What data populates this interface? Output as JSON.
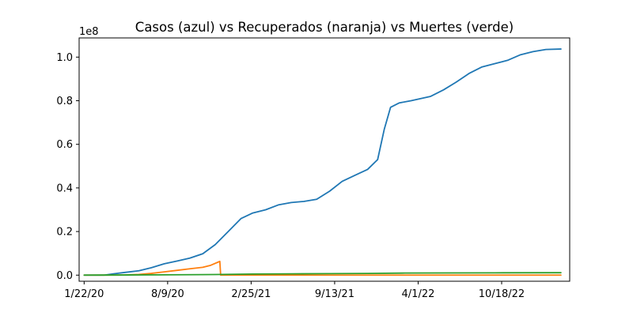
{
  "chart_data": {
    "type": "line",
    "title": "Casos (azul) vs Recuperados (naranja) vs Muertes (verde)",
    "xlabel": "",
    "ylabel": "",
    "y_offset_label": "1e8",
    "y_scale_factor": 100000000,
    "xlim": [
      "2020-01-10",
      "2023-03-30"
    ],
    "ylim": [
      -0.028,
      1.088
    ],
    "x_tick_values": [
      "2020-01-22",
      "2020-08-09",
      "2021-02-25",
      "2021-09-13",
      "2022-04-01",
      "2022-10-18"
    ],
    "x_tick_labels": [
      "1/22/20",
      "8/9/20",
      "2/25/21",
      "9/13/21",
      "4/1/22",
      "10/18/22"
    ],
    "y_tick_values": [
      0.0,
      0.2,
      0.4,
      0.6,
      0.8,
      1.0
    ],
    "y_tick_labels": [
      "0.0",
      "0.2",
      "0.4",
      "0.6",
      "0.8",
      "1.0"
    ],
    "grid": false,
    "legend": false,
    "series": [
      {
        "color": "#1f77b4",
        "points": [
          [
            "2020-01-22",
            0.0
          ],
          [
            "2020-03-10",
            0.0
          ],
          [
            "2020-04-01",
            0.006
          ],
          [
            "2020-05-01",
            0.013
          ],
          [
            "2020-06-01",
            0.02
          ],
          [
            "2020-07-01",
            0.034
          ],
          [
            "2020-08-01",
            0.052
          ],
          [
            "2020-09-01",
            0.065
          ],
          [
            "2020-10-01",
            0.078
          ],
          [
            "2020-11-01",
            0.098
          ],
          [
            "2020-12-01",
            0.14
          ],
          [
            "2021-01-01",
            0.2
          ],
          [
            "2021-02-01",
            0.26
          ],
          [
            "2021-03-01",
            0.285
          ],
          [
            "2021-04-01",
            0.3
          ],
          [
            "2021-05-01",
            0.322
          ],
          [
            "2021-06-01",
            0.333
          ],
          [
            "2021-07-01",
            0.338
          ],
          [
            "2021-08-01",
            0.348
          ],
          [
            "2021-09-01",
            0.385
          ],
          [
            "2021-10-01",
            0.43
          ],
          [
            "2021-11-01",
            0.458
          ],
          [
            "2021-12-01",
            0.485
          ],
          [
            "2021-12-25",
            0.53
          ],
          [
            "2022-01-10",
            0.67
          ],
          [
            "2022-01-25",
            0.77
          ],
          [
            "2022-02-15",
            0.79
          ],
          [
            "2022-03-15",
            0.8
          ],
          [
            "2022-05-01",
            0.82
          ],
          [
            "2022-06-01",
            0.85
          ],
          [
            "2022-07-01",
            0.885
          ],
          [
            "2022-08-01",
            0.925
          ],
          [
            "2022-09-01",
            0.955
          ],
          [
            "2022-10-01",
            0.97
          ],
          [
            "2022-11-01",
            0.985
          ],
          [
            "2022-12-01",
            1.01
          ],
          [
            "2023-01-01",
            1.025
          ],
          [
            "2023-02-01",
            1.035
          ],
          [
            "2023-03-09",
            1.037
          ]
        ]
      },
      {
        "color": "#ff7f0e",
        "points": [
          [
            "2020-01-22",
            0.0
          ],
          [
            "2020-04-15",
            0.0
          ],
          [
            "2020-06-01",
            0.003
          ],
          [
            "2020-07-01",
            0.008
          ],
          [
            "2020-08-01",
            0.015
          ],
          [
            "2020-09-01",
            0.022
          ],
          [
            "2020-10-01",
            0.029
          ],
          [
            "2020-11-01",
            0.036
          ],
          [
            "2020-11-20",
            0.045
          ],
          [
            "2020-12-12",
            0.063
          ],
          [
            "2020-12-14",
            0.0
          ],
          [
            "2021-06-01",
            0.0
          ],
          [
            "2022-01-01",
            0.0
          ],
          [
            "2023-03-09",
            0.0
          ]
        ]
      },
      {
        "color": "#2ca02c",
        "points": [
          [
            "2020-01-22",
            0.0
          ],
          [
            "2020-05-01",
            0.0007
          ],
          [
            "2020-08-01",
            0.0015
          ],
          [
            "2020-12-01",
            0.0028
          ],
          [
            "2021-03-01",
            0.005
          ],
          [
            "2021-06-01",
            0.006
          ],
          [
            "2021-09-01",
            0.0068
          ],
          [
            "2021-12-01",
            0.0078
          ],
          [
            "2022-03-01",
            0.0095
          ],
          [
            "2022-06-01",
            0.01
          ],
          [
            "2022-10-01",
            0.0106
          ],
          [
            "2023-03-09",
            0.0112
          ]
        ]
      }
    ]
  }
}
